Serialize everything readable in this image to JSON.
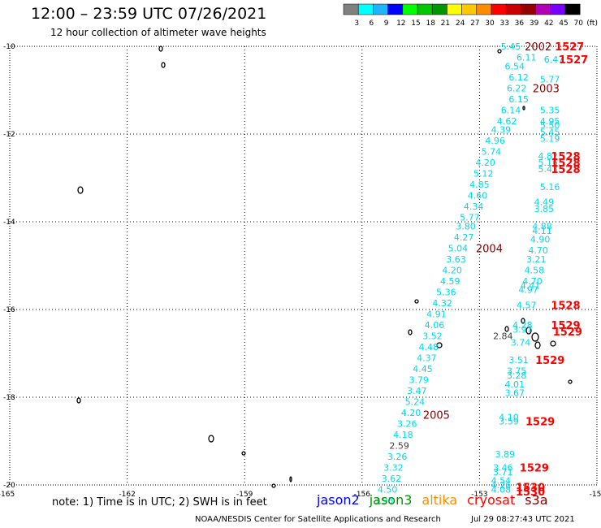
{
  "header": {
    "title": "12:00 – 23:59 UTC 07/26/2021",
    "subtitle": "12 hour collection of altimeter wave heights"
  },
  "colorbar": {
    "unit": "(ft)",
    "bins": [
      {
        "label": "3",
        "color": "#808080"
      },
      {
        "label": "6",
        "color": "#00ffff"
      },
      {
        "label": "9",
        "color": "#1eb4ff"
      },
      {
        "label": "12",
        "color": "#0000ff"
      },
      {
        "label": "15",
        "color": "#00ff00"
      },
      {
        "label": "18",
        "color": "#00c800"
      },
      {
        "label": "21",
        "color": "#009600"
      },
      {
        "label": "24",
        "color": "#ffff00"
      },
      {
        "label": "27",
        "color": "#ffc800"
      },
      {
        "label": "30",
        "color": "#ff8c00"
      },
      {
        "label": "33",
        "color": "#ff0000"
      },
      {
        "label": "36",
        "color": "#c80000"
      },
      {
        "label": "39",
        "color": "#960000"
      },
      {
        "label": "42",
        "color": "#b400b4"
      },
      {
        "label": "45",
        "color": "#7800ff"
      },
      {
        "label": "70",
        "color": "#000000"
      }
    ]
  },
  "map": {
    "lon_range": [
      -165,
      -150
    ],
    "lat_range": [
      -20,
      -10
    ],
    "lon_ticks": [
      "-165",
      "-162",
      "-159",
      "-156",
      "-153",
      "-15"
    ],
    "lat_ticks": [
      "-10",
      "-12",
      "-14",
      "-16",
      "-18",
      "-20"
    ],
    "grid": "dotted"
  },
  "wave_heights": {
    "cyan_color": "#00d8e8",
    "gray_color": "#404040",
    "cyan": [
      {
        "t": "5.45",
        "lon": -152.2,
        "lat": -10.0
      },
      {
        "t": "6.11",
        "lon": -151.8,
        "lat": -10.25
      },
      {
        "t": "6.47",
        "lon": -151.1,
        "lat": -10.3
      },
      {
        "t": "6.54",
        "lon": -152.1,
        "lat": -10.45
      },
      {
        "t": "6.12",
        "lon": -152.0,
        "lat": -10.7
      },
      {
        "t": "5.77",
        "lon": -151.2,
        "lat": -10.75
      },
      {
        "t": "6.22",
        "lon": -152.05,
        "lat": -10.95
      },
      {
        "t": "6.15",
        "lon": -152.0,
        "lat": -11.2
      },
      {
        "t": "6.14",
        "lon": -152.2,
        "lat": -11.45
      },
      {
        "t": "5.35",
        "lon": -151.2,
        "lat": -11.45
      },
      {
        "t": "4.62",
        "lon": -152.3,
        "lat": -11.7
      },
      {
        "t": "4.95",
        "lon": -151.2,
        "lat": -11.7
      },
      {
        "t": "5.50",
        "lon": -151.2,
        "lat": -11.8
      },
      {
        "t": "4.39",
        "lon": -152.45,
        "lat": -11.9
      },
      {
        "t": "5.45",
        "lon": -151.2,
        "lat": -11.95
      },
      {
        "t": "4.96",
        "lon": -152.6,
        "lat": -12.15
      },
      {
        "t": "5.19",
        "lon": -151.2,
        "lat": -12.1
      },
      {
        "t": "5.74",
        "lon": -152.7,
        "lat": -12.4
      },
      {
        "t": "4.82",
        "lon": -151.25,
        "lat": -12.5
      },
      {
        "t": "5.16",
        "lon": -151.25,
        "lat": -12.65
      },
      {
        "t": "4.20",
        "lon": -152.85,
        "lat": -12.65
      },
      {
        "t": "5.43",
        "lon": -151.25,
        "lat": -12.8
      },
      {
        "t": "5.12",
        "lon": -152.9,
        "lat": -12.9
      },
      {
        "t": "4.85",
        "lon": -153.0,
        "lat": -13.15
      },
      {
        "t": "5.16",
        "lon": -151.2,
        "lat": -13.2
      },
      {
        "t": "4.60",
        "lon": -153.05,
        "lat": -13.4
      },
      {
        "t": "4.49",
        "lon": -151.35,
        "lat": -13.55
      },
      {
        "t": "4.34",
        "lon": -153.15,
        "lat": -13.65
      },
      {
        "t": "3.85",
        "lon": -151.35,
        "lat": -13.7
      },
      {
        "t": "5.77",
        "lon": -153.25,
        "lat": -13.9
      },
      {
        "t": "3.80",
        "lon": -153.35,
        "lat": -14.1
      },
      {
        "t": "4.88",
        "lon": -151.4,
        "lat": -14.1
      },
      {
        "t": "4.11",
        "lon": -151.4,
        "lat": -14.2
      },
      {
        "t": "4.27",
        "lon": -153.4,
        "lat": -14.35
      },
      {
        "t": "4.90",
        "lon": -151.45,
        "lat": -14.4
      },
      {
        "t": "5.04",
        "lon": -153.55,
        "lat": -14.6
      },
      {
        "t": "4.70",
        "lon": -151.5,
        "lat": -14.65
      },
      {
        "t": "3.63",
        "lon": -153.6,
        "lat": -14.85
      },
      {
        "t": "3.21",
        "lon": -151.55,
        "lat": -14.85
      },
      {
        "t": "4.20",
        "lon": -153.7,
        "lat": -15.1
      },
      {
        "t": "4.58",
        "lon": -151.6,
        "lat": -15.1
      },
      {
        "t": "4.59",
        "lon": -153.75,
        "lat": -15.35
      },
      {
        "t": "4.70",
        "lon": -151.65,
        "lat": -15.35
      },
      {
        "t": "4.41",
        "lon": -151.7,
        "lat": -15.45
      },
      {
        "t": "5.36",
        "lon": -153.85,
        "lat": -15.6
      },
      {
        "t": "4.97",
        "lon": -151.75,
        "lat": -15.55
      },
      {
        "t": "4.32",
        "lon": -153.95,
        "lat": -15.85
      },
      {
        "t": "4.57",
        "lon": -151.8,
        "lat": -15.9
      },
      {
        "t": "4.91",
        "lon": -154.1,
        "lat": -16.1
      },
      {
        "t": "4.06",
        "lon": -154.15,
        "lat": -16.35
      },
      {
        "t": "4.28",
        "lon": -151.9,
        "lat": -16.35
      },
      {
        "t": "3.97",
        "lon": -151.9,
        "lat": -16.45
      },
      {
        "t": "3.52",
        "lon": -154.2,
        "lat": -16.6
      },
      {
        "t": "3.74",
        "lon": -151.95,
        "lat": -16.75
      },
      {
        "t": "4.48",
        "lon": -154.3,
        "lat": -16.85
      },
      {
        "t": "4.37",
        "lon": -154.35,
        "lat": -17.1
      },
      {
        "t": "3.51",
        "lon": -152.0,
        "lat": -17.15
      },
      {
        "t": "4.45",
        "lon": -154.45,
        "lat": -17.35
      },
      {
        "t": "3.75",
        "lon": -152.05,
        "lat": -17.4
      },
      {
        "t": "3.28",
        "lon": -152.05,
        "lat": -17.5
      },
      {
        "t": "3.79",
        "lon": -154.55,
        "lat": -17.6
      },
      {
        "t": "4.01",
        "lon": -152.1,
        "lat": -17.7
      },
      {
        "t": "3.47",
        "lon": -154.6,
        "lat": -17.85
      },
      {
        "t": "3.67",
        "lon": -152.1,
        "lat": -17.9
      },
      {
        "t": "5.24",
        "lon": -154.65,
        "lat": -18.1
      },
      {
        "t": "4.20",
        "lon": -154.75,
        "lat": -18.35
      },
      {
        "t": "4.10",
        "lon": -152.25,
        "lat": -18.45
      },
      {
        "t": "3.26",
        "lon": -154.85,
        "lat": -18.6
      },
      {
        "t": "3.59",
        "lon": -152.25,
        "lat": -18.55
      },
      {
        "t": "4.18",
        "lon": -154.95,
        "lat": -18.85
      },
      {
        "t": "3.89",
        "lon": -152.35,
        "lat": -19.3
      },
      {
        "t": "3.26",
        "lon": -155.1,
        "lat": -19.35
      },
      {
        "t": "3.32",
        "lon": -155.2,
        "lat": -19.6
      },
      {
        "t": "3.46",
        "lon": -152.4,
        "lat": -19.6
      },
      {
        "t": "3.71",
        "lon": -152.4,
        "lat": -19.7
      },
      {
        "t": "3.62",
        "lon": -155.25,
        "lat": -19.85
      },
      {
        "t": "4.54",
        "lon": -152.45,
        "lat": -19.9
      },
      {
        "t": "4.26",
        "lon": -152.45,
        "lat": -20.0
      },
      {
        "t": "4.08",
        "lon": -152.45,
        "lat": -20.1
      },
      {
        "t": "4.50",
        "lon": -155.35,
        "lat": -20.1
      },
      {
        "t": "3.93",
        "lon": -155.45,
        "lat": -20.35
      }
    ],
    "gray": [
      {
        "t": "2.84",
        "lon": -152.4,
        "lat": -16.6
      },
      {
        "t": "2.59",
        "lon": -155.05,
        "lat": -19.1
      }
    ]
  },
  "times": {
    "dark_color": "#800000",
    "red_color": "#ff0000",
    "dark": [
      {
        "t": "2002",
        "lon": -151.5,
        "lat": -10.0
      },
      {
        "t": "2003",
        "lon": -151.3,
        "lat": -10.95
      },
      {
        "t": "2004",
        "lon": -152.75,
        "lat": -14.6
      },
      {
        "t": "2005",
        "lon": -154.1,
        "lat": -18.4
      }
    ],
    "red": [
      {
        "t": "1527",
        "lon": -150.7,
        "lat": -10.0
      },
      {
        "t": "1527",
        "lon": -150.6,
        "lat": -10.3
      },
      {
        "t": "1528",
        "lon": -150.8,
        "lat": -12.5
      },
      {
        "t": "1528",
        "lon": -150.8,
        "lat": -12.65
      },
      {
        "t": "1528",
        "lon": -150.8,
        "lat": -12.8
      },
      {
        "t": "1528",
        "lon": -150.8,
        "lat": -15.9
      },
      {
        "t": "1529",
        "lon": -150.8,
        "lat": -16.35
      },
      {
        "t": "1529",
        "lon": -150.75,
        "lat": -16.5
      },
      {
        "t": "1529",
        "lon": -151.2,
        "lat": -17.15
      },
      {
        "t": "1529",
        "lon": -151.45,
        "lat": -18.55
      },
      {
        "t": "1529",
        "lon": -151.6,
        "lat": -19.6
      },
      {
        "t": "1530",
        "lon": -151.7,
        "lat": -20.05
      },
      {
        "t": "1530",
        "lon": -151.7,
        "lat": -20.15
      }
    ]
  },
  "footer": {
    "note": "note: 1) Time is in UTC; 2) SWH is in feet",
    "satellites": [
      {
        "name": "jason2",
        "color": "#0000ff"
      },
      {
        "name": "jason3",
        "color": "#009600"
      },
      {
        "name": "altika",
        "color": "#ff8c00"
      },
      {
        "name": "cryosat",
        "color": "#ff0000"
      },
      {
        "name": "s3a",
        "color": "#800000"
      }
    ],
    "credit": "NOAA/NESDIS Center for Satellite Applications and Research",
    "timestamp": "Jul 29 08:27:43 UTC 2021"
  }
}
